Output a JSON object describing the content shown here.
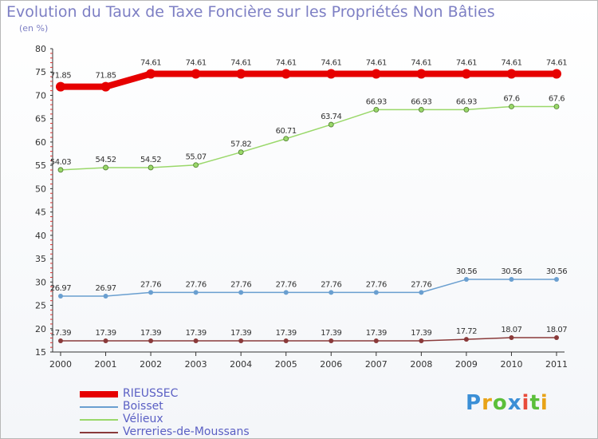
{
  "title": "Evolution du Taux de Taxe Foncière sur les Propriétés Non Bâties",
  "subtitle": "(en %)",
  "logo": {
    "letters": [
      "P",
      "r",
      "o",
      "x",
      "i",
      "t",
      "i"
    ],
    "colors": [
      "#3b8fd6",
      "#e8a317",
      "#5bbf3a",
      "#3b8fd6",
      "#e84b3a",
      "#5bbf3a",
      "#e8a317"
    ]
  },
  "chart_data": {
    "type": "line",
    "categories": [
      "2000",
      "2001",
      "2002",
      "2003",
      "2004",
      "2005",
      "2006",
      "2007",
      "2008",
      "2009",
      "2010",
      "2011"
    ],
    "ylim": [
      15,
      80
    ],
    "yticks": [
      "15",
      "20",
      "25",
      "30",
      "35",
      "40",
      "45",
      "50",
      "55",
      "60",
      "65",
      "70",
      "75",
      "80"
    ],
    "grid": false,
    "legend_position": "bottom-left",
    "series": [
      {
        "name": "RIEUSSEC",
        "color": "#e60000",
        "lineWidth": 8,
        "values": [
          71.85,
          71.85,
          74.61,
          74.61,
          74.61,
          74.61,
          74.61,
          74.61,
          74.61,
          74.61,
          74.61,
          74.61
        ],
        "labels": [
          "71.85",
          "71.85",
          "74.61",
          "74.61",
          "74.61",
          "74.61",
          "74.61",
          "74.61",
          "74.61",
          "74.61",
          "74.61",
          "74.61"
        ]
      },
      {
        "name": "Boisset",
        "color": "#6a9fd0",
        "lineWidth": 1.5,
        "values": [
          26.97,
          26.97,
          27.76,
          27.76,
          27.76,
          27.76,
          27.76,
          27.76,
          27.76,
          30.56,
          30.56,
          30.56
        ],
        "labels": [
          "26.97",
          "26.97",
          "27.76",
          "27.76",
          "27.76",
          "27.76",
          "27.76",
          "27.76",
          "27.76",
          "30.56",
          "30.56",
          "30.56"
        ]
      },
      {
        "name": "Vélieux",
        "color": "#9ad86a",
        "lineWidth": 1.5,
        "values": [
          54.03,
          54.52,
          54.52,
          55.07,
          57.82,
          60.71,
          63.74,
          66.93,
          66.93,
          66.93,
          67.6,
          67.6
        ],
        "labels": [
          "54.03",
          "54.52",
          "54.52",
          "55.07",
          "57.82",
          "60.71",
          "63.74",
          "66.93",
          "66.93",
          "66.93",
          "67.6",
          "67.6"
        ]
      },
      {
        "name": "Verreries-de-Moussans",
        "color": "#8a3a3a",
        "lineWidth": 1.5,
        "values": [
          17.39,
          17.39,
          17.39,
          17.39,
          17.39,
          17.39,
          17.39,
          17.39,
          17.39,
          17.72,
          18.07,
          18.07
        ],
        "labels": [
          "17.39",
          "17.39",
          "17.39",
          "17.39",
          "17.39",
          "17.39",
          "17.39",
          "17.39",
          "17.39",
          "17.72",
          "18.07",
          "18.07"
        ]
      }
    ]
  }
}
